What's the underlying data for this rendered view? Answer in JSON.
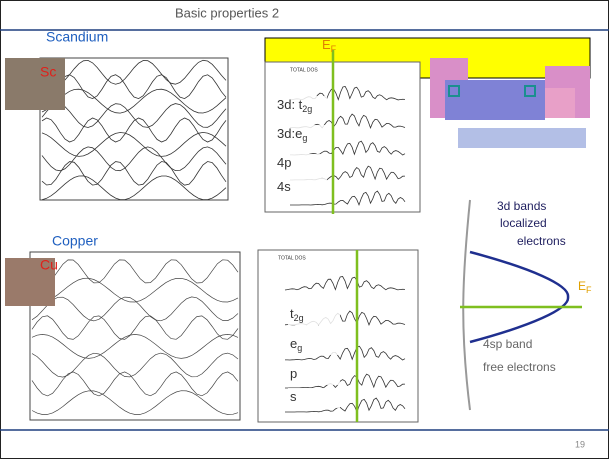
{
  "header": {
    "title": "Basic properties 2"
  },
  "scandium": {
    "label": "Scandium",
    "symbol": "Sc",
    "dos_title": "TOTAL DOS",
    "fermi": {
      "base": "E",
      "sub": "F"
    },
    "dos_labels": [
      {
        "base": "3d: t",
        "sub": "2g"
      },
      {
        "base": "3d:e",
        "sub": "g"
      },
      {
        "base": "4p"
      },
      {
        "base": "4s"
      }
    ]
  },
  "copper": {
    "label": "Copper",
    "symbol": "Cu",
    "dos_title": "TOTAL DOS",
    "dos_labels": [
      {
        "base": "t",
        "sub": "2g"
      },
      {
        "base": "e",
        "sub": "g"
      },
      {
        "base": "p"
      },
      {
        "base": "s"
      }
    ]
  },
  "diagram": {
    "bands_lines": [
      "3d bands",
      "localized",
      "electrons"
    ],
    "fermi": {
      "base": "E",
      "sub": "F"
    },
    "sp_lines": [
      "4sp band",
      "free electrons"
    ]
  },
  "footer": {
    "page": "19"
  }
}
